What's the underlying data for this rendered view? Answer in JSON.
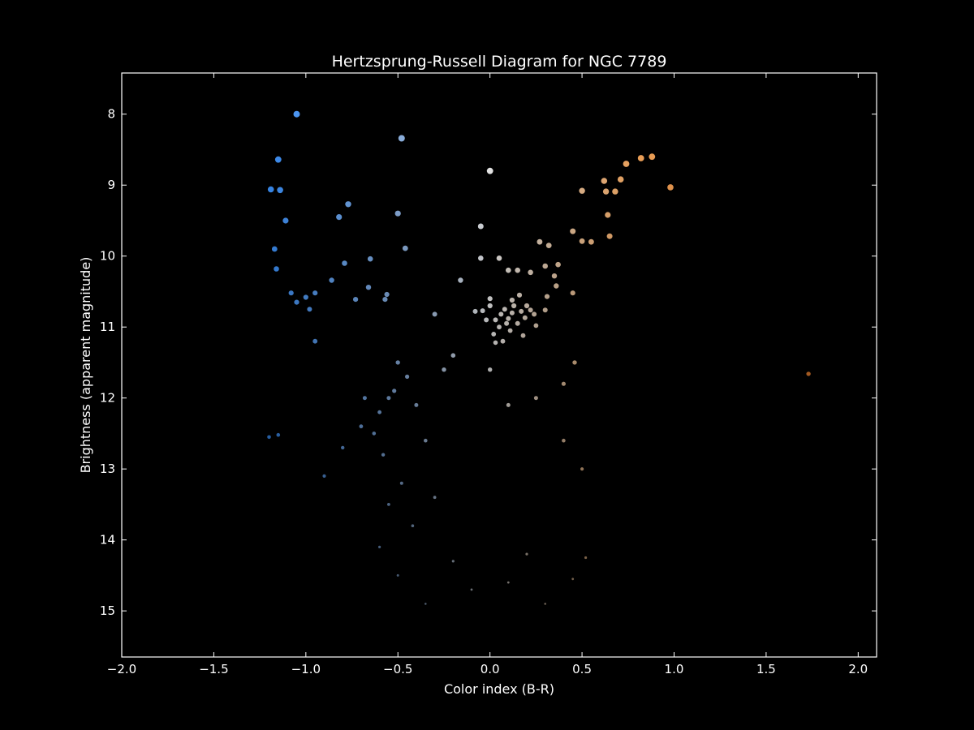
{
  "chart_data": {
    "type": "scatter",
    "title": "Hertzsprung-Russell Diagram for NGC 7789",
    "xlabel": "Color index (B-R)",
    "ylabel": "Brightness (apparent magnitude)",
    "xlim": [
      -2.0,
      2.1
    ],
    "ylim": [
      15.65,
      7.42
    ],
    "y_inverted": true,
    "grid": false,
    "background": "#000000",
    "foreground": "#ffffff",
    "x_ticks": [
      -2.0,
      -1.5,
      -1.0,
      -0.5,
      0.0,
      0.5,
      1.0,
      1.5,
      2.0
    ],
    "x_tick_labels": [
      "−2.0",
      "−1.5",
      "−1.0",
      "−0.5",
      "0.0",
      "0.5",
      "1.0",
      "1.5",
      "2.0"
    ],
    "y_ticks": [
      8,
      9,
      10,
      11,
      12,
      13,
      14,
      15
    ],
    "y_tick_labels": [
      "8",
      "9",
      "10",
      "11",
      "12",
      "13",
      "14",
      "15"
    ],
    "point_color_scale": {
      "note": "point color follows color index, size and brightness follow magnitude",
      "blue": "#3a8ef5",
      "white": "#f0f0f0",
      "orange": "#f5a65b",
      "deep_orange": "#e0782a"
    },
    "points": [
      {
        "x": -1.05,
        "y": 8.0
      },
      {
        "x": -0.48,
        "y": 8.34
      },
      {
        "x": -1.15,
        "y": 8.64
      },
      {
        "x": -1.19,
        "y": 9.06
      },
      {
        "x": -1.14,
        "y": 9.07
      },
      {
        "x": -1.11,
        "y": 9.5
      },
      {
        "x": -1.17,
        "y": 9.9
      },
      {
        "x": -1.16,
        "y": 10.18
      },
      {
        "x": -0.77,
        "y": 9.27
      },
      {
        "x": -0.82,
        "y": 9.45
      },
      {
        "x": -0.5,
        "y": 9.4
      },
      {
        "x": -0.46,
        "y": 9.89
      },
      {
        "x": -0.79,
        "y": 10.1
      },
      {
        "x": -0.65,
        "y": 10.04
      },
      {
        "x": -0.86,
        "y": 10.34
      },
      {
        "x": -1.08,
        "y": 10.52
      },
      {
        "x": -1.0,
        "y": 10.58
      },
      {
        "x": -0.95,
        "y": 10.52
      },
      {
        "x": -1.05,
        "y": 10.65
      },
      {
        "x": -0.98,
        "y": 10.75
      },
      {
        "x": -0.66,
        "y": 10.44
      },
      {
        "x": -0.73,
        "y": 10.61
      },
      {
        "x": -0.56,
        "y": 10.54
      },
      {
        "x": -0.57,
        "y": 10.61
      },
      {
        "x": -0.3,
        "y": 10.82
      },
      {
        "x": -0.95,
        "y": 11.2
      },
      {
        "x": 0.0,
        "y": 8.8
      },
      {
        "x": -0.05,
        "y": 9.58
      },
      {
        "x": -0.05,
        "y": 10.03
      },
      {
        "x": 0.05,
        "y": 10.03
      },
      {
        "x": -0.16,
        "y": 10.34
      },
      {
        "x": 0.15,
        "y": 10.2
      },
      {
        "x": 0.1,
        "y": 10.2
      },
      {
        "x": 0.3,
        "y": 10.14
      },
      {
        "x": 0.37,
        "y": 10.12
      },
      {
        "x": 0.35,
        "y": 10.28
      },
      {
        "x": 0.22,
        "y": 10.23
      },
      {
        "x": 0.27,
        "y": 9.8
      },
      {
        "x": 0.32,
        "y": 9.85
      },
      {
        "x": 0.45,
        "y": 10.52
      },
      {
        "x": 0.36,
        "y": 10.42
      },
      {
        "x": 0.31,
        "y": 10.57
      },
      {
        "x": -0.08,
        "y": 10.78
      },
      {
        "x": -0.04,
        "y": 10.77
      },
      {
        "x": 0.0,
        "y": 10.7
      },
      {
        "x": 0.0,
        "y": 10.6
      },
      {
        "x": 0.03,
        "y": 10.9
      },
      {
        "x": 0.06,
        "y": 10.82
      },
      {
        "x": 0.08,
        "y": 10.75
      },
      {
        "x": 0.1,
        "y": 10.88
      },
      {
        "x": 0.12,
        "y": 10.8
      },
      {
        "x": 0.13,
        "y": 10.7
      },
      {
        "x": 0.15,
        "y": 10.95
      },
      {
        "x": 0.17,
        "y": 10.78
      },
      {
        "x": 0.19,
        "y": 10.87
      },
      {
        "x": 0.2,
        "y": 10.7
      },
      {
        "x": 0.22,
        "y": 10.76
      },
      {
        "x": 0.24,
        "y": 10.82
      },
      {
        "x": 0.25,
        "y": 10.98
      },
      {
        "x": 0.05,
        "y": 11.0
      },
      {
        "x": 0.02,
        "y": 11.1
      },
      {
        "x": 0.07,
        "y": 11.2
      },
      {
        "x": 0.11,
        "y": 11.05
      },
      {
        "x": 0.16,
        "y": 10.55
      },
      {
        "x": 0.18,
        "y": 11.12
      },
      {
        "x": 0.09,
        "y": 10.95
      },
      {
        "x": -0.02,
        "y": 10.9
      },
      {
        "x": 0.12,
        "y": 10.62
      },
      {
        "x": 0.3,
        "y": 10.76
      },
      {
        "x": 0.03,
        "y": 11.22
      },
      {
        "x": 0.5,
        "y": 9.08
      },
      {
        "x": 0.45,
        "y": 9.65
      },
      {
        "x": 0.5,
        "y": 9.79
      },
      {
        "x": 0.55,
        "y": 9.8
      },
      {
        "x": 0.62,
        "y": 8.94
      },
      {
        "x": 0.63,
        "y": 9.09
      },
      {
        "x": 0.68,
        "y": 9.09
      },
      {
        "x": 0.71,
        "y": 8.92
      },
      {
        "x": 0.64,
        "y": 9.42
      },
      {
        "x": 0.65,
        "y": 9.72
      },
      {
        "x": 0.74,
        "y": 8.7
      },
      {
        "x": 0.82,
        "y": 8.62
      },
      {
        "x": 0.88,
        "y": 8.6
      },
      {
        "x": 0.98,
        "y": 9.03
      },
      {
        "x": 1.73,
        "y": 11.66
      },
      {
        "x": -0.52,
        "y": 11.9
      },
      {
        "x": -0.55,
        "y": 12.0
      },
      {
        "x": -0.6,
        "y": 12.2
      },
      {
        "x": -0.63,
        "y": 12.5
      },
      {
        "x": -0.58,
        "y": 12.8
      },
      {
        "x": -0.5,
        "y": 11.5
      },
      {
        "x": -0.45,
        "y": 11.7
      },
      {
        "x": -0.4,
        "y": 12.1
      },
      {
        "x": -0.35,
        "y": 12.6
      },
      {
        "x": -0.68,
        "y": 12.0
      },
      {
        "x": -0.7,
        "y": 12.4
      },
      {
        "x": -0.48,
        "y": 13.2
      },
      {
        "x": -0.55,
        "y": 13.5
      },
      {
        "x": -0.42,
        "y": 13.8
      },
      {
        "x": -0.3,
        "y": 13.4
      },
      {
        "x": -0.6,
        "y": 14.1
      },
      {
        "x": -0.5,
        "y": 14.5
      },
      {
        "x": -0.35,
        "y": 14.9
      },
      {
        "x": -0.2,
        "y": 14.3
      },
      {
        "x": -0.1,
        "y": 14.7
      },
      {
        "x": 0.1,
        "y": 14.6
      },
      {
        "x": 0.2,
        "y": 14.2
      },
      {
        "x": 0.3,
        "y": 14.9
      },
      {
        "x": -0.8,
        "y": 12.7
      },
      {
        "x": -0.9,
        "y": 13.1
      },
      {
        "x": -1.2,
        "y": 12.55
      },
      {
        "x": -1.15,
        "y": 12.52
      },
      {
        "x": -0.2,
        "y": 11.4
      },
      {
        "x": -0.25,
        "y": 11.6
      },
      {
        "x": 0.0,
        "y": 11.6
      },
      {
        "x": 0.1,
        "y": 12.1
      },
      {
        "x": 0.25,
        "y": 12.0
      },
      {
        "x": 0.4,
        "y": 11.8
      },
      {
        "x": 0.46,
        "y": 11.5
      },
      {
        "x": 0.4,
        "y": 12.6
      },
      {
        "x": 0.5,
        "y": 13.0
      },
      {
        "x": 0.52,
        "y": 14.25
      },
      {
        "x": 0.45,
        "y": 14.55
      }
    ]
  }
}
